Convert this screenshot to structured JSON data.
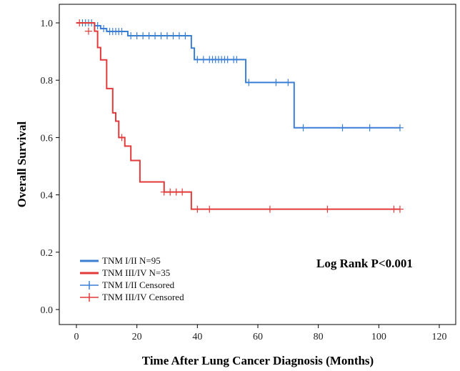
{
  "chart_data": {
    "type": "line",
    "subtype": "kaplan-meier step",
    "title": "",
    "xlabel": "Time After Lung Cancer Diagnosis (Months)",
    "ylabel": "Overall Survival",
    "xlim": [
      0,
      120
    ],
    "ylim": [
      0.0,
      1.0
    ],
    "xticks": [
      0,
      20,
      40,
      60,
      80,
      100,
      120
    ],
    "yticks": [
      0.0,
      0.2,
      0.4,
      0.6,
      0.8,
      1.0
    ],
    "xtick_labels": [
      "0",
      "20",
      "40",
      "60",
      "80",
      "100",
      "120"
    ],
    "ytick_labels": [
      "0.0",
      "0.2",
      "0.4",
      "0.6",
      "0.8",
      "1.0"
    ],
    "grid": false,
    "legend_position": "bottom-left",
    "annotation": "Log Rank P<0.001",
    "series": [
      {
        "name": "TNM I/II N=95",
        "censored_name": "TNM I/II Censored",
        "color": "#3a7fd5",
        "steps": [
          [
            0,
            1.0
          ],
          [
            6,
            0.99
          ],
          [
            8,
            0.98
          ],
          [
            10,
            0.97
          ],
          [
            17,
            0.955
          ],
          [
            38,
            0.912
          ],
          [
            39,
            0.872
          ],
          [
            56,
            0.792
          ],
          [
            72,
            0.634
          ],
          [
            107,
            0.634
          ]
        ],
        "censored": [
          [
            2,
            1.0
          ],
          [
            3,
            1.0
          ],
          [
            4,
            1.0
          ],
          [
            5,
            1.0
          ],
          [
            7,
            0.99
          ],
          [
            9,
            0.98
          ],
          [
            11,
            0.97
          ],
          [
            12,
            0.97
          ],
          [
            13,
            0.97
          ],
          [
            14,
            0.97
          ],
          [
            15,
            0.97
          ],
          [
            18,
            0.955
          ],
          [
            20,
            0.955
          ],
          [
            22,
            0.955
          ],
          [
            24,
            0.955
          ],
          [
            26,
            0.955
          ],
          [
            28,
            0.955
          ],
          [
            30,
            0.955
          ],
          [
            32,
            0.955
          ],
          [
            34,
            0.955
          ],
          [
            36,
            0.955
          ],
          [
            40,
            0.872
          ],
          [
            42,
            0.872
          ],
          [
            44,
            0.872
          ],
          [
            45,
            0.872
          ],
          [
            46,
            0.872
          ],
          [
            47,
            0.872
          ],
          [
            48,
            0.872
          ],
          [
            49,
            0.872
          ],
          [
            50,
            0.872
          ],
          [
            52,
            0.872
          ],
          [
            53,
            0.872
          ],
          [
            57,
            0.792
          ],
          [
            66,
            0.792
          ],
          [
            70,
            0.792
          ],
          [
            75,
            0.634
          ],
          [
            88,
            0.634
          ],
          [
            97,
            0.634
          ],
          [
            107,
            0.634
          ]
        ]
      },
      {
        "name": "TNM III/IV N=35",
        "censored_name": "TNM III/IV Censored",
        "color": "#e23a3a",
        "steps": [
          [
            0,
            1.0
          ],
          [
            6,
            0.971
          ],
          [
            7,
            0.914
          ],
          [
            8,
            0.871
          ],
          [
            10,
            0.771
          ],
          [
            12,
            0.686
          ],
          [
            13,
            0.657
          ],
          [
            14,
            0.6
          ],
          [
            16,
            0.57
          ],
          [
            18,
            0.52
          ],
          [
            21,
            0.445
          ],
          [
            29,
            0.41
          ],
          [
            38,
            0.35
          ],
          [
            107,
            0.35
          ]
        ],
        "censored": [
          [
            1,
            1.0
          ],
          [
            4,
            0.971
          ],
          [
            15,
            0.6
          ],
          [
            29,
            0.41
          ],
          [
            31,
            0.41
          ],
          [
            33,
            0.41
          ],
          [
            35,
            0.41
          ],
          [
            40,
            0.35
          ],
          [
            44,
            0.35
          ],
          [
            64,
            0.35
          ],
          [
            83,
            0.35
          ],
          [
            105,
            0.35
          ],
          [
            107,
            0.35
          ]
        ]
      }
    ]
  }
}
